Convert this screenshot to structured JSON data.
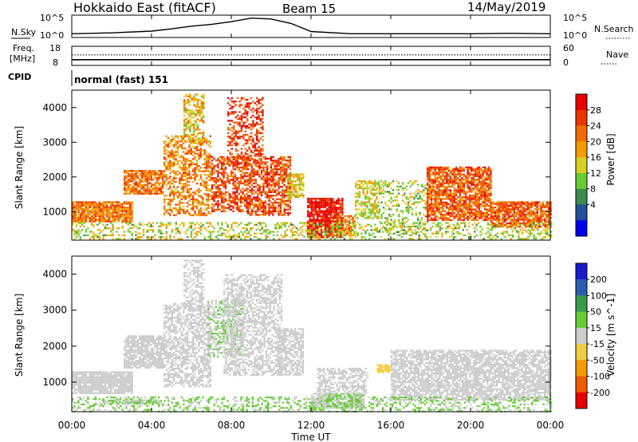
{
  "header": {
    "station": "Hokkaido East (fitACF)",
    "beam": "Beam 15",
    "date": "14/May/2019"
  },
  "time_axis": {
    "label": "Time UT",
    "ticks": [
      "00:00",
      "04:00",
      "08:00",
      "12:00",
      "16:00",
      "20:00",
      "00:00"
    ]
  },
  "nsky_panel": {
    "left_label": "N.Sky",
    "right_label": "N.Search",
    "left_ticks": [
      "10^5",
      "10^0"
    ],
    "right_ticks": [
      "10^5",
      "10^0"
    ]
  },
  "freq_panel": {
    "left_label_line1": "Freq.",
    "left_label_line2": "[MHz]",
    "right_label": "Nave",
    "left_ticks": [
      "18",
      "8"
    ],
    "right_ticks": [
      "60",
      "0"
    ]
  },
  "cpid_panel": {
    "label": "CPID",
    "mode_text": "normal (fast) 151"
  },
  "power_panel": {
    "ylabel": "Slant Range [km]",
    "yticks": [
      "4000",
      "3000",
      "2000",
      "1000"
    ],
    "colorbar_label": "Power [dB]",
    "colorbar_ticks": [
      "28",
      "24",
      "20",
      "16",
      "12",
      "8",
      "4"
    ],
    "colors": [
      "#0000ee",
      "#22509a",
      "#3c8a50",
      "#66cc33",
      "#d8d020",
      "#f59a00",
      "#f26a00",
      "#ee3300",
      "#e60000"
    ]
  },
  "velocity_panel": {
    "ylabel": "Slant Range [km]",
    "yticks": [
      "4000",
      "3000",
      "2000",
      "1000"
    ],
    "colorbar_label": "Velocity [m s^-1]",
    "colorbar_ticks": [
      "200",
      "100",
      "50",
      "15",
      "-15",
      "-50",
      "-100",
      "-200"
    ],
    "colors": [
      "#1a1acc",
      "#2a5db0",
      "#3a9a4a",
      "#66cc33",
      "#cccccc",
      "#f2cc40",
      "#f59a00",
      "#f05a00",
      "#e60000"
    ]
  },
  "chart_data": [
    {
      "type": "heatmap",
      "name": "power",
      "x_unit": "hours UT",
      "xlim": [
        0,
        24
      ],
      "ylim": [
        180,
        4500
      ],
      "value_unit": "dB",
      "clim": [
        0,
        30
      ],
      "regions": [
        {
          "t0": 0.0,
          "t1": 3.0,
          "r0": 700,
          "r1": 1300,
          "value": 21,
          "density": 0.9
        },
        {
          "t0": 2.6,
          "t1": 4.6,
          "r0": 1500,
          "r1": 2200,
          "value": 22,
          "density": 0.8
        },
        {
          "t0": 4.6,
          "t1": 7.0,
          "r0": 900,
          "r1": 3200,
          "value": 20,
          "density": 0.55
        },
        {
          "t0": 5.6,
          "t1": 6.6,
          "r0": 3000,
          "r1": 4400,
          "value": 17,
          "density": 0.55
        },
        {
          "t0": 7.0,
          "t1": 8.8,
          "r0": 1000,
          "r1": 2600,
          "value": 24,
          "density": 0.6
        },
        {
          "t0": 7.8,
          "t1": 9.6,
          "r0": 2400,
          "r1": 4300,
          "value": 25,
          "density": 0.45
        },
        {
          "t0": 8.8,
          "t1": 11.0,
          "r0": 900,
          "r1": 2600,
          "value": 24,
          "density": 0.65
        },
        {
          "t0": 10.8,
          "t1": 11.6,
          "r0": 1400,
          "r1": 2100,
          "value": 16,
          "density": 0.7
        },
        {
          "t0": 11.8,
          "t1": 13.6,
          "r0": 250,
          "r1": 1400,
          "value": 28,
          "density": 0.85
        },
        {
          "t0": 13.0,
          "t1": 14.2,
          "r0": 300,
          "r1": 900,
          "value": 20,
          "density": 0.6
        },
        {
          "t0": 14.2,
          "t1": 15.4,
          "r0": 800,
          "r1": 1900,
          "value": 15,
          "density": 0.55
        },
        {
          "t0": 15.4,
          "t1": 17.8,
          "r0": 350,
          "r1": 1900,
          "value": 13,
          "density": 0.3
        },
        {
          "t0": 17.8,
          "t1": 21.0,
          "r0": 750,
          "r1": 2300,
          "value": 23,
          "density": 0.8
        },
        {
          "t0": 21.0,
          "t1": 24.0,
          "r0": 550,
          "r1": 1300,
          "value": 23,
          "density": 0.85
        },
        {
          "t0": 0.0,
          "t1": 24.0,
          "r0": 200,
          "r1": 700,
          "value": 14,
          "density": 0.35
        }
      ]
    },
    {
      "type": "heatmap",
      "name": "velocity",
      "x_unit": "hours UT",
      "xlim": [
        0,
        24
      ],
      "ylim": [
        180,
        4500
      ],
      "value_unit": "m s^-1",
      "clim": [
        -250,
        250
      ],
      "regions": [
        {
          "t0": 0.0,
          "t1": 3.0,
          "r0": 700,
          "r1": 1300,
          "value": 0,
          "density": 0.9
        },
        {
          "t0": 2.6,
          "t1": 4.6,
          "r0": 1400,
          "r1": 2300,
          "value": 0,
          "density": 0.8
        },
        {
          "t0": 4.6,
          "t1": 7.0,
          "r0": 900,
          "r1": 3200,
          "value": 0,
          "density": 0.6
        },
        {
          "t0": 5.6,
          "t1": 6.6,
          "r0": 3000,
          "r1": 4400,
          "value": 5,
          "density": 0.5
        },
        {
          "t0": 6.8,
          "t1": 8.6,
          "r0": 1700,
          "r1": 3300,
          "value": 25,
          "density": 0.55
        },
        {
          "t0": 7.6,
          "t1": 10.5,
          "r0": 1200,
          "r1": 4000,
          "value": 0,
          "density": 0.55
        },
        {
          "t0": 10.3,
          "t1": 11.6,
          "r0": 1200,
          "r1": 2500,
          "value": 0,
          "density": 0.7
        },
        {
          "t0": 12.0,
          "t1": 14.6,
          "r0": 300,
          "r1": 700,
          "value": 25,
          "density": 0.85
        },
        {
          "t0": 12.3,
          "t1": 14.8,
          "r0": 700,
          "r1": 1400,
          "value": 0,
          "density": 0.55
        },
        {
          "t0": 1.5,
          "t1": 4.2,
          "r0": 380,
          "r1": 520,
          "value": 25,
          "density": 0.8
        },
        {
          "t0": 15.3,
          "t1": 16.0,
          "r0": 1300,
          "r1": 1500,
          "value": -50,
          "density": 0.9
        },
        {
          "t0": 16.0,
          "t1": 24.0,
          "r0": 500,
          "r1": 1900,
          "value": 0,
          "density": 0.75
        },
        {
          "t0": 0.0,
          "t1": 24.0,
          "r0": 200,
          "r1": 600,
          "value": 30,
          "density": 0.35
        }
      ]
    },
    {
      "type": "line",
      "name": "nsky",
      "x": [
        0,
        2,
        4,
        5,
        6,
        7,
        8,
        9,
        10,
        11,
        12,
        14,
        16,
        18,
        20,
        22,
        24
      ],
      "y": [
        0.3,
        0.5,
        0.9,
        1.4,
        2.0,
        2.4,
        3.0,
        3.8,
        3.6,
        2.6,
        0.8,
        0.3,
        0.3,
        0.3,
        0.3,
        0.4,
        0.3
      ]
    },
    {
      "type": "line",
      "name": "freq",
      "x": [
        0,
        24
      ],
      "y": [
        11,
        11
      ]
    },
    {
      "type": "line",
      "name": "nave",
      "x": [
        0,
        24
      ],
      "y": [
        33,
        33
      ]
    }
  ]
}
